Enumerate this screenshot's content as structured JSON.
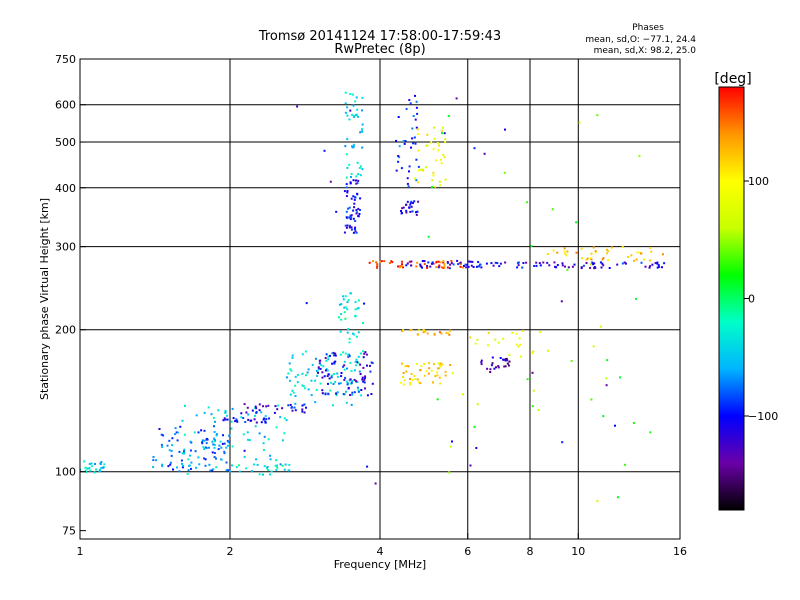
{
  "chart_data": {
    "type": "scatter",
    "title": "Tromsø 20141124 17:58:00-17:59:43",
    "subtitle": "RwPretec (8p)",
    "phases": {
      "heading": "Phases",
      "line_o": "mean, sd,O: −77.1, 24.4",
      "line_x": "mean, sd,X:  98.2, 25.0"
    },
    "xlabel": "Frequency [MHz]",
    "ylabel": "Stationary phase Virtual Height [km]",
    "x_scale": "log",
    "y_scale": "log",
    "xlim": [
      1,
      16
    ],
    "ylim": [
      72,
      750
    ],
    "x_ticks": [
      {
        "value": 1,
        "label": "1"
      },
      {
        "value": 2,
        "label": "2"
      },
      {
        "value": 4,
        "label": "4"
      },
      {
        "value": 6,
        "label": "6"
      },
      {
        "value": 8,
        "label": "8"
      },
      {
        "value": 10,
        "label": "10"
      },
      {
        "value": 16,
        "label": "16"
      }
    ],
    "x_gridlines": [
      2,
      4,
      6,
      8,
      10
    ],
    "y_ticks": [
      {
        "value": 75,
        "label": "75"
      },
      {
        "value": 100,
        "label": "100"
      },
      {
        "value": 200,
        "label": "200"
      },
      {
        "value": 300,
        "label": "300"
      },
      {
        "value": 400,
        "label": "400"
      },
      {
        "value": 500,
        "label": "500"
      },
      {
        "value": 600,
        "label": "600"
      },
      {
        "value": 750,
        "label": "750"
      }
    ],
    "y_gridlines": [
      100,
      200,
      300,
      400,
      500,
      600
    ],
    "grid": true,
    "colorbar": {
      "label": "[deg]",
      "range": [
        -180,
        180
      ],
      "ticks": [
        {
          "value": 100,
          "label": "100"
        },
        {
          "value": 0,
          "label": "0"
        },
        {
          "value": -100,
          "label": "−100"
        }
      ],
      "colormap": [
        "#000000",
        "#6a00a8",
        "#0000ff",
        "#00b4ff",
        "#00ffc8",
        "#00ff00",
        "#c8ff00",
        "#ffff00",
        "#ff9600",
        "#ff0000"
      ]
    },
    "point_clusters": [
      {
        "x": [
          1.0,
          1.12
        ],
        "y": [
          99,
          106
        ],
        "phase": -40,
        "n": 25
      },
      {
        "x": [
          1.4,
          2.0
        ],
        "y": [
          100,
          125
        ],
        "phase": -80,
        "n": 90
      },
      {
        "x": [
          1.6,
          2.6
        ],
        "y": [
          98,
          140
        ],
        "phase": -40,
        "n": 80
      },
      {
        "x": [
          1.9,
          2.4
        ],
        "y": [
          127,
          130
        ],
        "phase": -110,
        "n": 25
      },
      {
        "x": [
          2.1,
          2.9
        ],
        "y": [
          133,
          140
        ],
        "phase": -110,
        "n": 30
      },
      {
        "x": [
          2.0,
          2.9
        ],
        "y": [
          100,
          104
        ],
        "phase": -30,
        "n": 20
      },
      {
        "x": [
          2.6,
          3.7
        ],
        "y": [
          138,
          180
        ],
        "phase": -40,
        "n": 90
      },
      {
        "x": [
          3.0,
          3.9
        ],
        "y": [
          145,
          180
        ],
        "phase": -110,
        "n": 80
      },
      {
        "x": [
          3.3,
          3.7
        ],
        "y": [
          170,
          240
        ],
        "phase": -30,
        "n": 40
      },
      {
        "x": [
          3.4,
          3.65
        ],
        "y": [
          320,
          420
        ],
        "phase": -100,
        "n": 60
      },
      {
        "x": [
          3.4,
          3.7
        ],
        "y": [
          420,
          640
        ],
        "phase": -40,
        "n": 45
      },
      {
        "x": [
          4.4,
          4.8
        ],
        "y": [
          350,
          375
        ],
        "phase": -110,
        "n": 25
      },
      {
        "x": [
          4.3,
          4.8
        ],
        "y": [
          400,
          630
        ],
        "phase": -90,
        "n": 35
      },
      {
        "x": [
          4.7,
          5.5
        ],
        "y": [
          400,
          560
        ],
        "phase": 90,
        "n": 35
      },
      {
        "x": [
          4.4,
          5.6
        ],
        "y": [
          153,
          170
        ],
        "phase": 110,
        "n": 50
      },
      {
        "x": [
          4.4,
          5.6
        ],
        "y": [
          195,
          200
        ],
        "phase": 130,
        "n": 20
      },
      {
        "x": [
          3.8,
          5.9
        ],
        "y": [
          270,
          280
        ],
        "phase": 160,
        "n": 45
      },
      {
        "x": [
          4.4,
          6.4
        ],
        "y": [
          270,
          280
        ],
        "phase": -110,
        "n": 40
      },
      {
        "x": [
          6.3,
          7.3
        ],
        "y": [
          160,
          175
        ],
        "phase": -130,
        "n": 25
      },
      {
        "x": [
          6.0,
          8.5
        ],
        "y": [
          175,
          200
        ],
        "phase": 90,
        "n": 20
      },
      {
        "x": [
          6.0,
          15.0
        ],
        "y": [
          270,
          278
        ],
        "phase": -110,
        "n": 70
      },
      {
        "x": [
          8.6,
          15.0
        ],
        "y": [
          280,
          300
        ],
        "phase": 120,
        "n": 40
      },
      {
        "x": [
          5.0,
          14.0
        ],
        "y": [
          80,
          640
        ],
        "phase": 40,
        "n": 40
      },
      {
        "x": [
          2.0,
          14.0
        ],
        "y": [
          78,
          650
        ],
        "phase": -120,
        "n": 25
      }
    ]
  }
}
